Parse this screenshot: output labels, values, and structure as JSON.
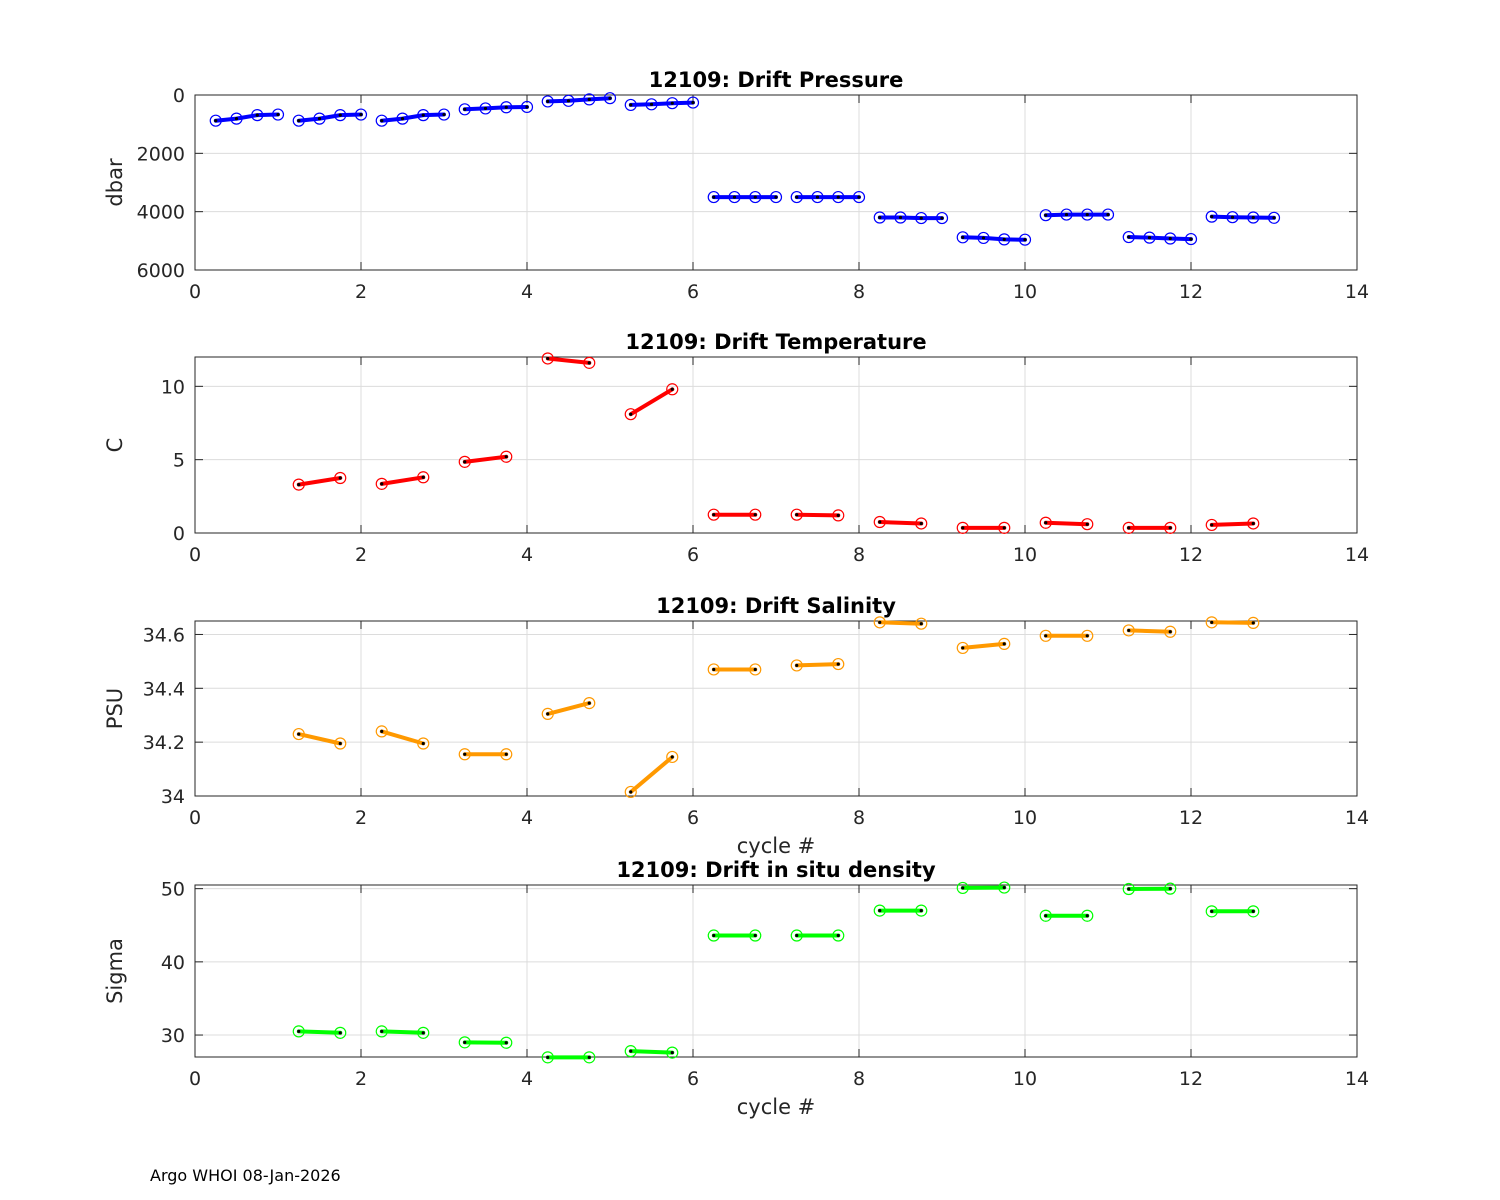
{
  "footer": {
    "note": "Argo WHOI 08-Jan-2026"
  },
  "chart_data": [
    {
      "type": "line",
      "title": "12109: Drift Pressure",
      "xlabel": "",
      "ylabel": "dbar",
      "xlim": [
        0,
        14
      ],
      "ylim": [
        0,
        6000
      ],
      "y_reversed": true,
      "xticks": [
        0,
        2,
        4,
        6,
        8,
        10,
        12,
        14
      ],
      "yticks": [
        0,
        2000,
        4000,
        6000
      ],
      "color": "#0000ff",
      "segments": [
        {
          "x": [
            0.25,
            0.5,
            0.75,
            1.0
          ],
          "y": [
            880,
            810,
            690,
            670
          ]
        },
        {
          "x": [
            1.25,
            1.5,
            1.75,
            2.0
          ],
          "y": [
            880,
            810,
            690,
            670
          ]
        },
        {
          "x": [
            2.25,
            2.5,
            2.75,
            3.0
          ],
          "y": [
            880,
            810,
            690,
            670
          ]
        },
        {
          "x": [
            3.25,
            3.5,
            3.75,
            4.0
          ],
          "y": [
            490,
            460,
            420,
            410
          ]
        },
        {
          "x": [
            4.25,
            4.5,
            4.75,
            5.0
          ],
          "y": [
            220,
            200,
            150,
            110
          ]
        },
        {
          "x": [
            5.25,
            5.5,
            5.75,
            6.0
          ],
          "y": [
            340,
            320,
            280,
            260
          ]
        },
        {
          "x": [
            6.25,
            6.5,
            6.75,
            7.0
          ],
          "y": [
            3500,
            3500,
            3500,
            3500
          ]
        },
        {
          "x": [
            7.25,
            7.5,
            7.75,
            8.0
          ],
          "y": [
            3500,
            3500,
            3500,
            3500
          ]
        },
        {
          "x": [
            8.25,
            8.5,
            8.75,
            9.0
          ],
          "y": [
            4200,
            4200,
            4220,
            4220
          ]
        },
        {
          "x": [
            9.25,
            9.5,
            9.75,
            10.0
          ],
          "y": [
            4880,
            4900,
            4950,
            4960
          ]
        },
        {
          "x": [
            10.25,
            10.5,
            10.75,
            11.0
          ],
          "y": [
            4120,
            4100,
            4100,
            4100
          ]
        },
        {
          "x": [
            11.25,
            11.5,
            11.75,
            12.0
          ],
          "y": [
            4870,
            4890,
            4920,
            4940
          ]
        },
        {
          "x": [
            12.25,
            12.5,
            12.75,
            13.0
          ],
          "y": [
            4170,
            4190,
            4200,
            4210
          ]
        }
      ]
    },
    {
      "type": "line",
      "title": "12109: Drift Temperature",
      "xlabel": "",
      "ylabel": "C",
      "xlim": [
        0,
        14
      ],
      "ylim": [
        0,
        12
      ],
      "y_reversed": false,
      "xticks": [
        0,
        2,
        4,
        6,
        8,
        10,
        12,
        14
      ],
      "yticks": [
        0,
        5,
        10
      ],
      "color": "#ff0000",
      "segments": [
        {
          "x": [
            1.25,
            1.75
          ],
          "y": [
            3.3,
            3.75
          ]
        },
        {
          "x": [
            2.25,
            2.75
          ],
          "y": [
            3.35,
            3.8
          ]
        },
        {
          "x": [
            3.25,
            3.75
          ],
          "y": [
            4.85,
            5.2
          ]
        },
        {
          "x": [
            4.25,
            4.75
          ],
          "y": [
            11.9,
            11.6
          ]
        },
        {
          "x": [
            5.25,
            5.75
          ],
          "y": [
            8.1,
            9.8
          ]
        },
        {
          "x": [
            6.25,
            6.75
          ],
          "y": [
            1.25,
            1.25
          ]
        },
        {
          "x": [
            7.25,
            7.75
          ],
          "y": [
            1.25,
            1.2
          ]
        },
        {
          "x": [
            8.25,
            8.75
          ],
          "y": [
            0.75,
            0.65
          ]
        },
        {
          "x": [
            9.25,
            9.75
          ],
          "y": [
            0.35,
            0.35
          ]
        },
        {
          "x": [
            10.25,
            10.75
          ],
          "y": [
            0.7,
            0.6
          ]
        },
        {
          "x": [
            11.25,
            11.75
          ],
          "y": [
            0.35,
            0.35
          ]
        },
        {
          "x": [
            12.25,
            12.75
          ],
          "y": [
            0.55,
            0.65
          ]
        }
      ]
    },
    {
      "type": "line",
      "title": "12109: Drift Salinity",
      "xlabel": "cycle #",
      "ylabel": "PSU",
      "xlim": [
        0,
        14
      ],
      "ylim": [
        34,
        34.65
      ],
      "y_reversed": false,
      "xticks": [
        0,
        2,
        4,
        6,
        8,
        10,
        12,
        14
      ],
      "yticks": [
        34,
        34.2,
        34.4,
        34.6
      ],
      "yticklabels": [
        "34",
        "34.2",
        "34.4",
        "34.6"
      ],
      "color": "#ff9900",
      "segments": [
        {
          "x": [
            1.25,
            1.75
          ],
          "y": [
            34.23,
            34.195
          ]
        },
        {
          "x": [
            2.25,
            2.75
          ],
          "y": [
            34.24,
            34.195
          ]
        },
        {
          "x": [
            3.25,
            3.75
          ],
          "y": [
            34.155,
            34.155
          ]
        },
        {
          "x": [
            4.25,
            4.75
          ],
          "y": [
            34.305,
            34.345
          ]
        },
        {
          "x": [
            5.25,
            5.75
          ],
          "y": [
            34.015,
            34.145
          ]
        },
        {
          "x": [
            6.25,
            6.75
          ],
          "y": [
            34.47,
            34.47
          ]
        },
        {
          "x": [
            7.25,
            7.75
          ],
          "y": [
            34.485,
            34.49
          ]
        },
        {
          "x": [
            8.25,
            8.75
          ],
          "y": [
            34.645,
            34.64
          ]
        },
        {
          "x": [
            9.25,
            9.75
          ],
          "y": [
            34.55,
            34.565
          ]
        },
        {
          "x": [
            10.25,
            10.75
          ],
          "y": [
            34.595,
            34.595
          ]
        },
        {
          "x": [
            11.25,
            11.75
          ],
          "y": [
            34.615,
            34.61
          ]
        },
        {
          "x": [
            12.25,
            12.75
          ],
          "y": [
            34.645,
            34.643
          ]
        }
      ]
    },
    {
      "type": "line",
      "title": "12109: Drift in situ density",
      "xlabel": "cycle #",
      "ylabel": "Sigma",
      "xlim": [
        0,
        14
      ],
      "ylim": [
        27,
        50.5
      ],
      "y_reversed": false,
      "xticks": [
        0,
        2,
        4,
        6,
        8,
        10,
        12,
        14
      ],
      "yticks": [
        30,
        40,
        50
      ],
      "color": "#00ff00",
      "segments": [
        {
          "x": [
            1.25,
            1.75
          ],
          "y": [
            30.5,
            30.3
          ]
        },
        {
          "x": [
            2.25,
            2.75
          ],
          "y": [
            30.5,
            30.3
          ]
        },
        {
          "x": [
            3.25,
            3.75
          ],
          "y": [
            29.0,
            28.95
          ]
        },
        {
          "x": [
            4.25,
            4.75
          ],
          "y": [
            26.95,
            26.95
          ]
        },
        {
          "x": [
            5.25,
            5.75
          ],
          "y": [
            27.8,
            27.6
          ]
        },
        {
          "x": [
            6.25,
            6.75
          ],
          "y": [
            43.6,
            43.6
          ]
        },
        {
          "x": [
            7.25,
            7.75
          ],
          "y": [
            43.6,
            43.6
          ]
        },
        {
          "x": [
            8.25,
            8.75
          ],
          "y": [
            47.0,
            47.0
          ]
        },
        {
          "x": [
            9.25,
            9.75
          ],
          "y": [
            50.1,
            50.15
          ]
        },
        {
          "x": [
            10.25,
            10.75
          ],
          "y": [
            46.3,
            46.3
          ]
        },
        {
          "x": [
            11.25,
            11.75
          ],
          "y": [
            49.95,
            50.0
          ]
        },
        {
          "x": [
            12.25,
            12.75
          ],
          "y": [
            46.9,
            46.9
          ]
        }
      ]
    }
  ]
}
